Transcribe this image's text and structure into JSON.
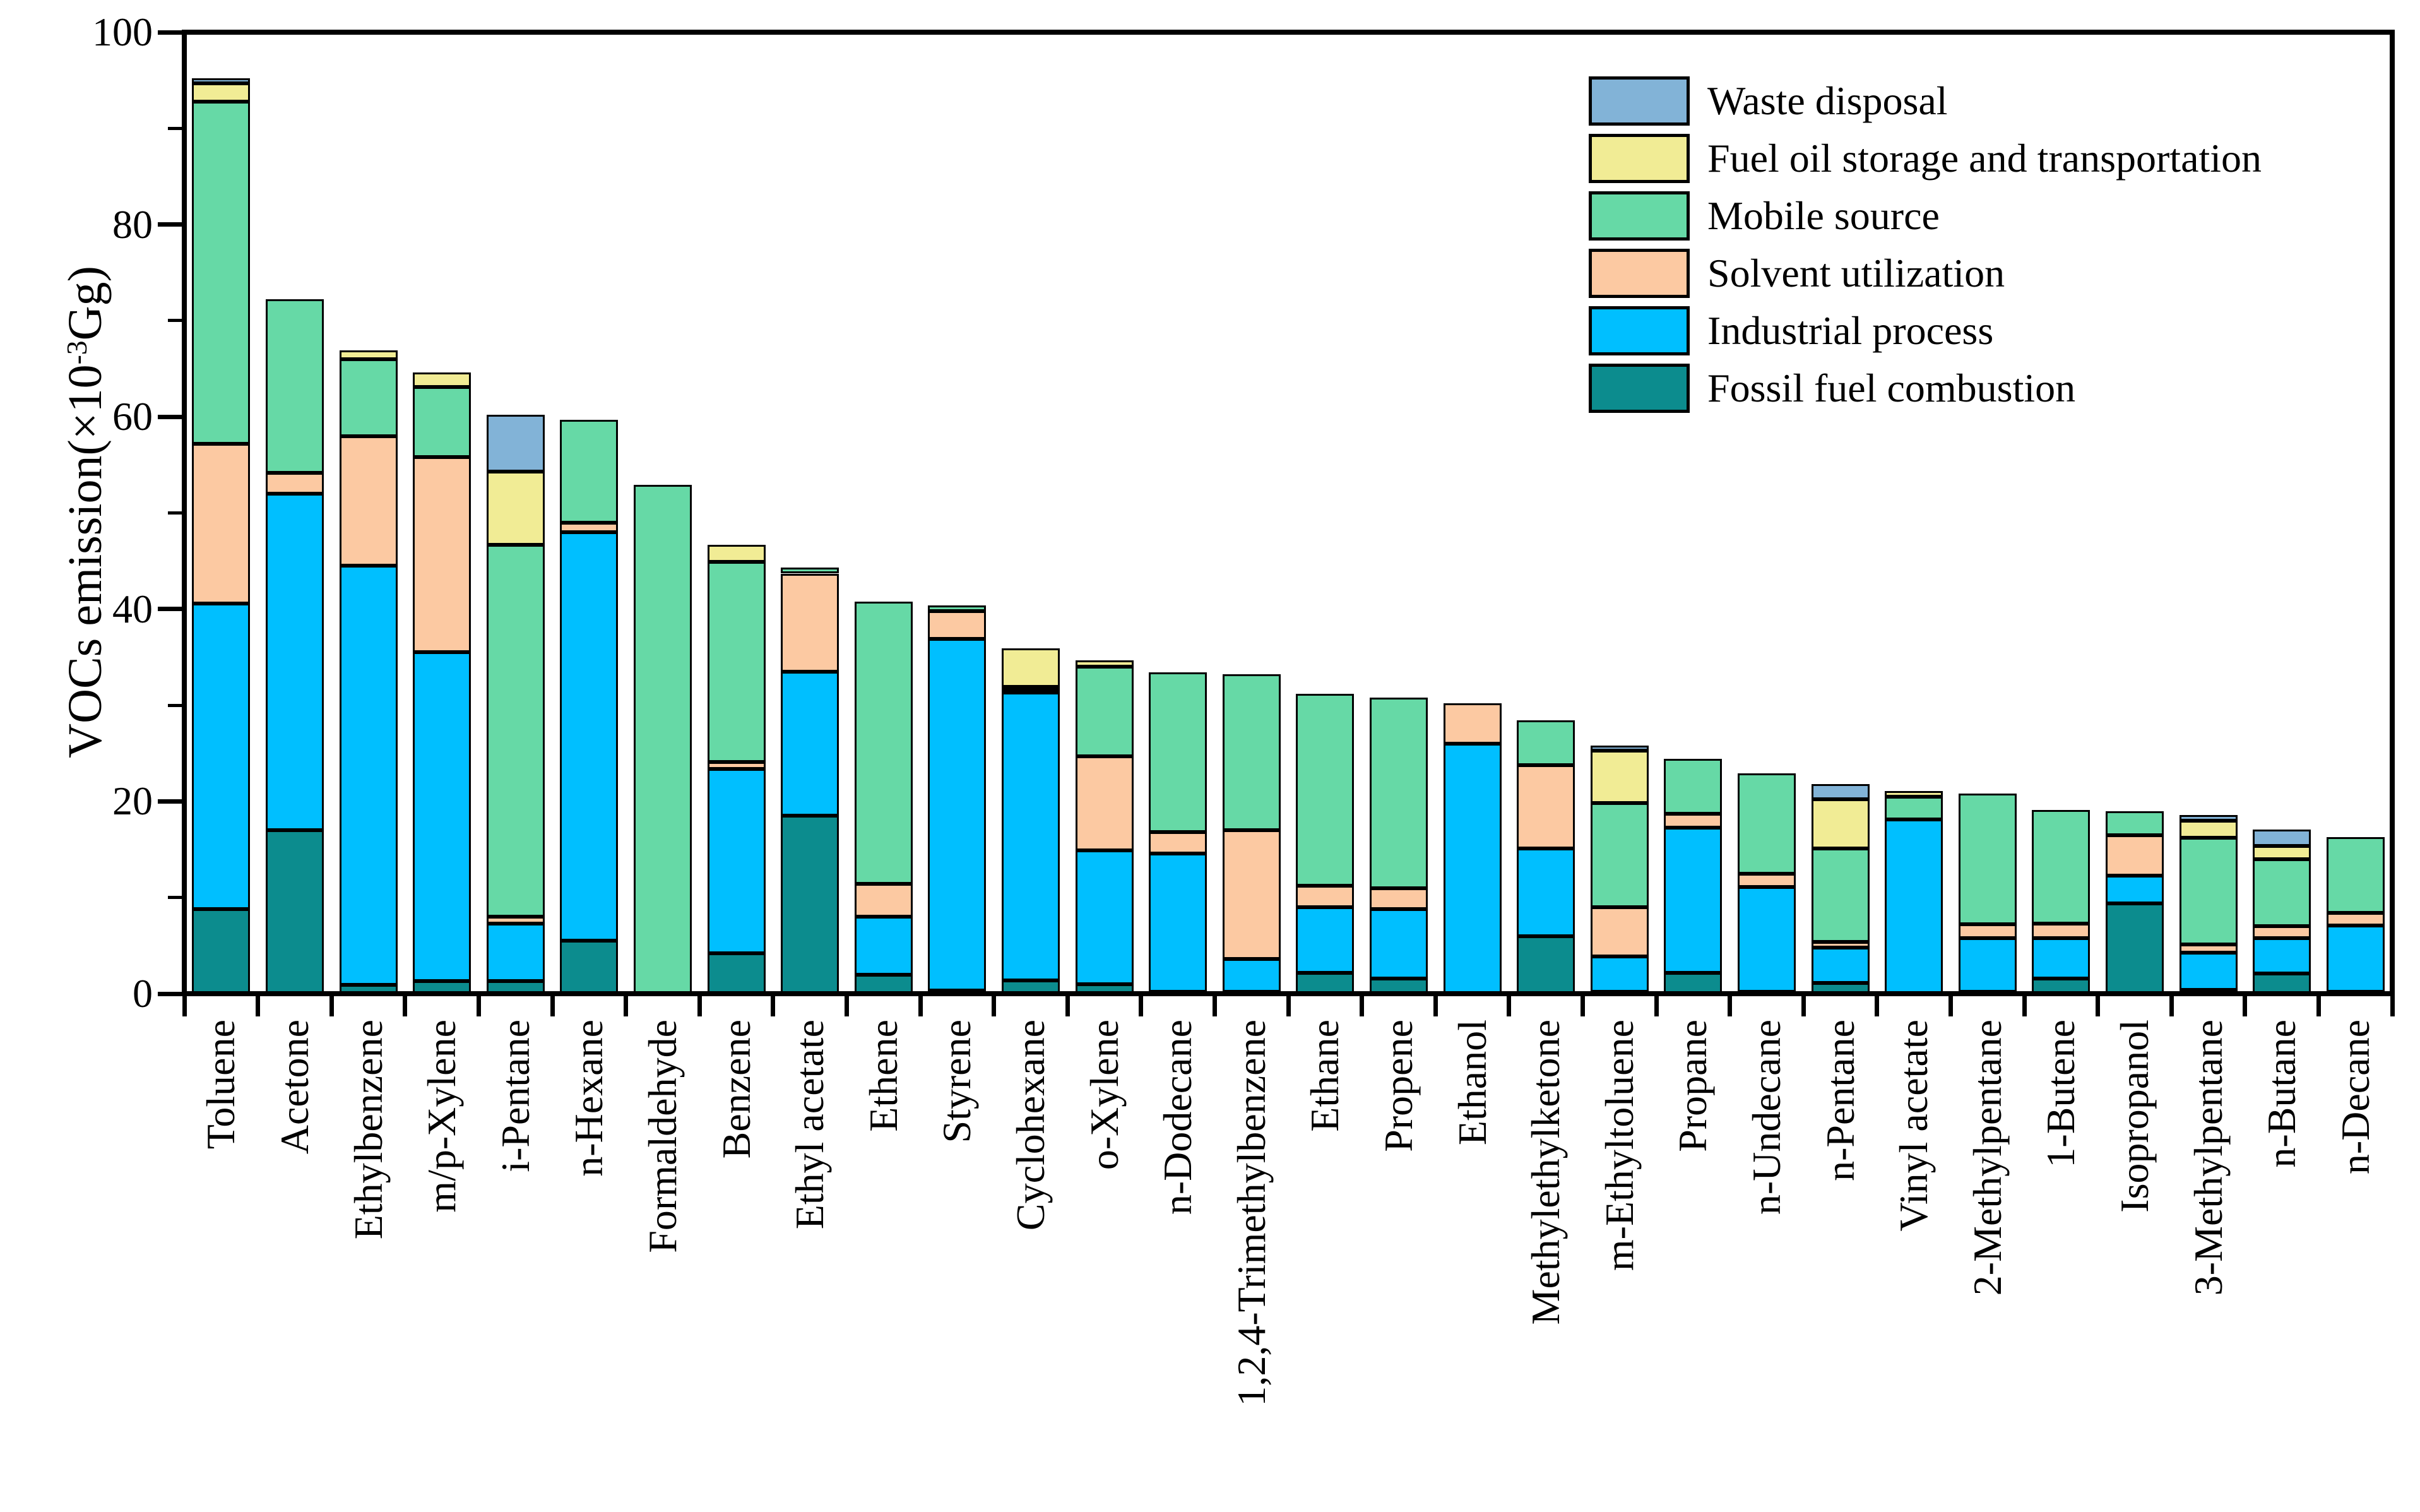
{
  "figure": {
    "background": "#ffffff",
    "axis_color": "#000000"
  },
  "y_axis": {
    "title_prefix": "VOCs emission(×10",
    "title_sup": "-3",
    "title_suffix": "Gg)",
    "min": 0,
    "max": 100,
    "major_ticks": [
      0,
      20,
      40,
      60,
      80,
      100
    ],
    "minor_ticks": [
      10,
      30,
      50,
      70,
      90
    ]
  },
  "legend": {
    "items": [
      "Waste disposal",
      "Fuel oil storage and transportation",
      "Mobile source",
      "Solvent utilization",
      "Industrial process",
      "Fossil fuel combustion"
    ]
  },
  "chart_data": {
    "type": "bar",
    "stacked": true,
    "title": "",
    "xlabel": "",
    "ylabel": "VOCs emission(×10-3Gg)",
    "ylim": [
      0,
      100
    ],
    "grid": false,
    "legend_position": "top-right-inside",
    "categories": [
      "Toluene",
      "Acetone",
      "Ethylbenzene",
      "m/p-Xylene",
      "i-Pentane",
      "n-Hexane",
      "Formaldehyde",
      "Benzene",
      "Ethyl acetate",
      "Ethene",
      "Styrene",
      "Cyclohexane",
      "o-Xylene",
      "n-Dodecane",
      "1,2,4-Trimethylbenzene",
      "Ethane",
      "Propene",
      "Ethanol",
      "Methylethylketone",
      "m-Ethyltoluene",
      "Propane",
      "n-Undecane",
      "n-Pentane",
      "Vinyl acetate",
      "2-Methylpentane",
      "1-Butene",
      "Isopropanol",
      "3-Methylpentane",
      "n-Butane",
      "n-Decane"
    ],
    "series": [
      {
        "name": "Fossil fuel combustion",
        "color": "#0C8C8E",
        "values": [
          8.8,
          17.0,
          0.9,
          1.3,
          1.3,
          5.5,
          0,
          4.2,
          18.5,
          2.0,
          0.3,
          1.4,
          1.0,
          0.2,
          0.2,
          2.2,
          1.6,
          0,
          6.0,
          0.2,
          2.2,
          0.2,
          1.1,
          0,
          0.2,
          1.6,
          9.4,
          0.4,
          2.1,
          0.2
        ]
      },
      {
        "name": "Industrial process",
        "color": "#00BFFF",
        "values": [
          31.8,
          35.0,
          43.6,
          34.2,
          6.0,
          42.5,
          0,
          19.2,
          15.0,
          6.0,
          36.6,
          29.9,
          13.9,
          14.4,
          3.4,
          6.8,
          7.2,
          26.0,
          9.1,
          3.7,
          15.1,
          10.9,
          3.7,
          18.1,
          5.6,
          4.2,
          2.9,
          3.9,
          3.7,
          6.9
        ]
      },
      {
        "name": "Solvent utilization",
        "color": "#FCC9A2",
        "values": [
          16.6,
          2.2,
          13.5,
          20.3,
          0.7,
          1.0,
          0,
          0.7,
          10.2,
          3.4,
          2.9,
          0.2,
          9.8,
          2.2,
          13.4,
          2.2,
          2.2,
          4.2,
          8.7,
          5.1,
          1.4,
          1.4,
          0.6,
          0,
          1.4,
          1.5,
          4.2,
          0.8,
          1.2,
          1.3
        ]
      },
      {
        "name": "Mobile source",
        "color": "#66D9A6",
        "values": [
          35.6,
          18.0,
          8.0,
          7.3,
          38.7,
          10.7,
          52.9,
          20.8,
          0.6,
          29.4,
          0.6,
          0.4,
          9.3,
          16.6,
          16.2,
          20.0,
          19.8,
          0,
          4.6,
          10.8,
          5.7,
          10.4,
          9.7,
          2.4,
          13.6,
          11.8,
          2.5,
          11.1,
          7.0,
          7.9
        ]
      },
      {
        "name": "Fuel oil storage and transportation",
        "color": "#F1EC95",
        "values": [
          1.9,
          0,
          0.9,
          1.5,
          7.6,
          0,
          0,
          1.8,
          0,
          0,
          0,
          4.0,
          0.7,
          0,
          0,
          0,
          0,
          0,
          0,
          5.5,
          0,
          0,
          5.1,
          0.6,
          0,
          0,
          0,
          1.8,
          1.4,
          0
        ]
      },
      {
        "name": "Waste disposal",
        "color": "#82B3D7",
        "values": [
          0.5,
          0,
          0,
          0,
          5.9,
          0,
          0,
          0,
          0,
          0,
          0,
          0,
          0,
          0,
          0,
          0,
          0,
          0,
          0,
          0.5,
          0,
          0,
          1.6,
          0,
          0,
          0,
          0,
          0.6,
          1.7,
          0
        ]
      }
    ]
  }
}
